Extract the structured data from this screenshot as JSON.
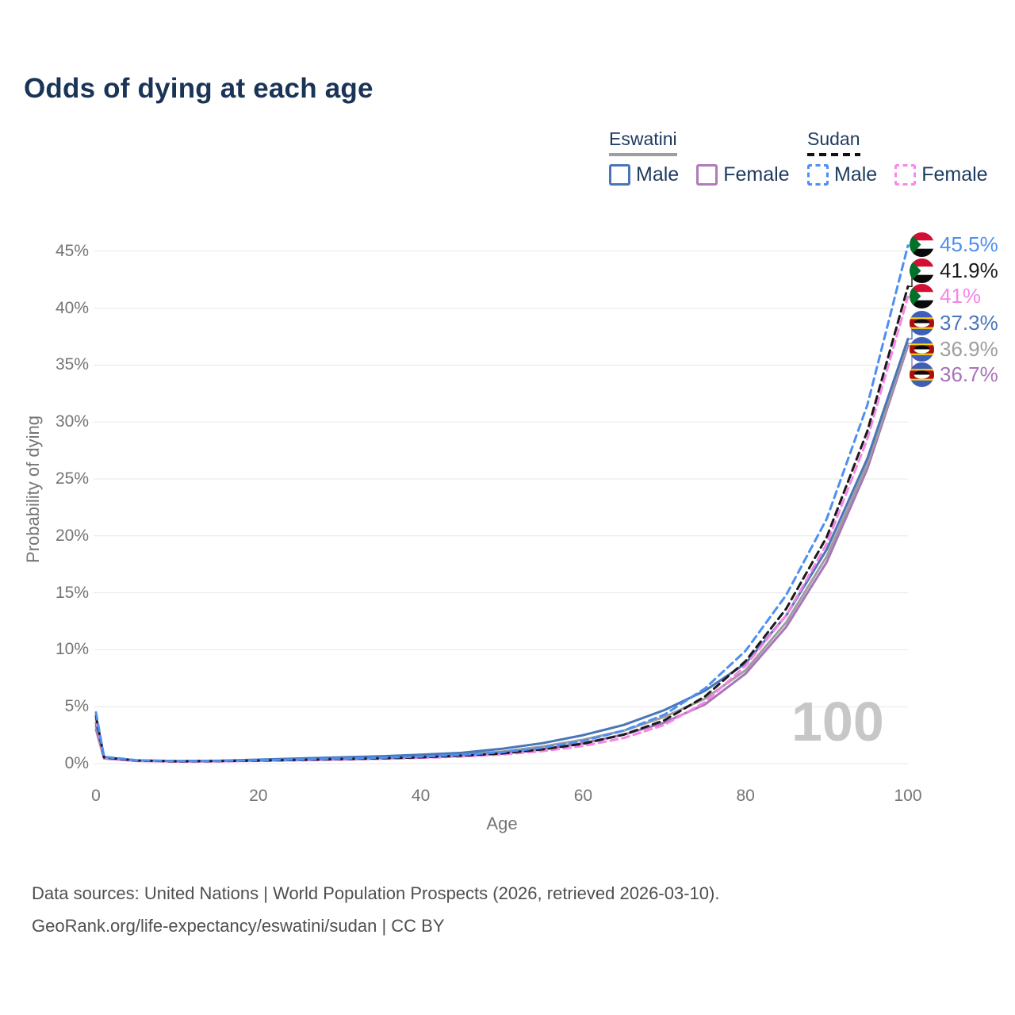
{
  "title": "Odds of dying at each age",
  "watermark": "100",
  "legend": {
    "groups": [
      {
        "name": "Eswatini",
        "style": "solid",
        "underline_color": "#9e9e9e",
        "items": [
          {
            "label": "Male",
            "color": "#4a76b8",
            "dashed": false
          },
          {
            "label": "Female",
            "color": "#b279bd",
            "dashed": false
          }
        ]
      },
      {
        "name": "Sudan",
        "style": "dashed",
        "underline_color": "#111111",
        "items": [
          {
            "label": "Male",
            "color": "#4d8ff2",
            "dashed": true
          },
          {
            "label": "Female",
            "color": "#fb86ec",
            "dashed": true
          }
        ]
      }
    ]
  },
  "chart_data": {
    "type": "line",
    "title": "Odds of dying at each age",
    "xlabel": "Age",
    "ylabel": "Probability of dying",
    "xlim": [
      0,
      100
    ],
    "ylim_percent": [
      0,
      46
    ],
    "grid": "horizontal",
    "legend_position": "top-right",
    "x": [
      0,
      1,
      5,
      10,
      15,
      20,
      25,
      30,
      35,
      40,
      45,
      50,
      55,
      60,
      65,
      70,
      75,
      80,
      85,
      90,
      95,
      100
    ],
    "xticks": [
      0,
      20,
      40,
      60,
      80,
      100
    ],
    "yticks": [
      {
        "label": "0%",
        "value": 0
      },
      {
        "label": "5%",
        "value": 5
      },
      {
        "label": "10%",
        "value": 10
      },
      {
        "label": "15%",
        "value": 15
      },
      {
        "label": "20%",
        "value": 20
      },
      {
        "label": "25%",
        "value": 25
      },
      {
        "label": "30%",
        "value": 30
      },
      {
        "label": "35%",
        "value": 35
      },
      {
        "label": "40%",
        "value": 40
      },
      {
        "label": "45%",
        "value": 45
      }
    ],
    "series": [
      {
        "name": "Sudan Male",
        "country": "sudan",
        "sex": "male",
        "color": "#4d8ff2",
        "dashed": true,
        "end_label": "45.5%",
        "values_percent": [
          4.5,
          0.6,
          0.3,
          0.22,
          0.24,
          0.3,
          0.36,
          0.44,
          0.52,
          0.62,
          0.78,
          1.0,
          1.4,
          2.0,
          2.9,
          4.3,
          6.6,
          9.9,
          14.8,
          21.5,
          31.5,
          45.5
        ]
      },
      {
        "name": "Sudan Both sexes",
        "country": "sudan",
        "sex": "both",
        "color": "#1a1a1a",
        "dashed": true,
        "end_label": "41.9%",
        "values_percent": [
          4.2,
          0.55,
          0.28,
          0.2,
          0.22,
          0.27,
          0.33,
          0.4,
          0.47,
          0.56,
          0.7,
          0.9,
          1.25,
          1.75,
          2.55,
          3.8,
          5.9,
          9.0,
          13.6,
          19.9,
          29.2,
          41.9
        ]
      },
      {
        "name": "Sudan Female",
        "country": "sudan",
        "sex": "female",
        "color": "#f884e8",
        "dashed": true,
        "end_label": "41%",
        "values_percent": [
          3.9,
          0.5,
          0.26,
          0.19,
          0.2,
          0.24,
          0.29,
          0.35,
          0.42,
          0.5,
          0.62,
          0.8,
          1.1,
          1.55,
          2.25,
          3.4,
          5.4,
          8.6,
          13.0,
          19.3,
          28.5,
          41.0
        ]
      },
      {
        "name": "Eswatini Male",
        "country": "eswatini",
        "sex": "male",
        "color": "#4a76b8",
        "dashed": false,
        "end_label": "37.3%",
        "values_percent": [
          3.6,
          0.55,
          0.28,
          0.22,
          0.25,
          0.35,
          0.45,
          0.55,
          0.65,
          0.78,
          0.95,
          1.3,
          1.8,
          2.5,
          3.4,
          4.7,
          6.4,
          8.8,
          13.0,
          18.8,
          26.8,
          37.3
        ]
      },
      {
        "name": "Eswatini Both sexes",
        "country": "eswatini",
        "sex": "both",
        "color": "#9e9e9e",
        "dashed": false,
        "end_label": "36.9%",
        "values_percent": [
          3.3,
          0.5,
          0.26,
          0.2,
          0.22,
          0.3,
          0.38,
          0.46,
          0.55,
          0.65,
          0.8,
          1.05,
          1.5,
          2.1,
          2.9,
          4.1,
          5.7,
          8.2,
          12.4,
          18.2,
          26.3,
          36.9
        ]
      },
      {
        "name": "Eswatini Female",
        "country": "eswatini",
        "sex": "female",
        "color": "#a873b8",
        "dashed": false,
        "end_label": "36.7%",
        "values_percent": [
          3.0,
          0.45,
          0.24,
          0.18,
          0.2,
          0.26,
          0.32,
          0.38,
          0.46,
          0.55,
          0.68,
          0.88,
          1.25,
          1.8,
          2.55,
          3.6,
          5.2,
          7.9,
          12.0,
          17.7,
          25.9,
          36.7
        ]
      }
    ]
  },
  "footer": {
    "line1": "Data sources: United Nations | World Population Prospects (2026, retrieved 2026-03-10).",
    "line2": "GeoRank.org/life-expectancy/eswatini/sudan | CC BY"
  }
}
